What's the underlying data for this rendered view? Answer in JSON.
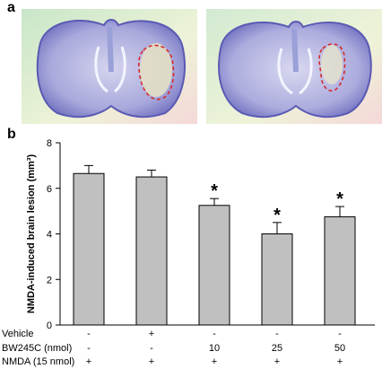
{
  "panels": {
    "a": {
      "label": "a"
    },
    "b": {
      "label": "b"
    }
  },
  "colors": {
    "bar": "#c0c0c0",
    "lesion_outline": "#d42a2a",
    "stain_dark": "#5a5ab4",
    "stain_light": "#b8b8e6"
  },
  "chart_data": {
    "type": "bar",
    "ylabel": "NMDA-induced brain lesion (mm³)",
    "ylim": [
      0,
      8
    ],
    "yticks": [
      "0",
      "2",
      "4",
      "6",
      "8"
    ],
    "grid": false,
    "values": [
      6.65,
      6.5,
      5.25,
      4.0,
      4.75
    ],
    "errors": [
      0.35,
      0.3,
      0.3,
      0.5,
      0.45
    ],
    "significance": [
      "",
      "",
      "*",
      "*",
      "*"
    ],
    "treatment_rows": [
      {
        "label": "Vehicle",
        "values": [
          "-",
          "+",
          "-",
          "-",
          "-"
        ]
      },
      {
        "label": "BW245C (nmol)",
        "values": [
          "-",
          "-",
          "10",
          "25",
          "50"
        ]
      },
      {
        "label": "NMDA (15 nmol)",
        "values": [
          "+",
          "+",
          "+",
          "+",
          "+"
        ]
      }
    ]
  }
}
